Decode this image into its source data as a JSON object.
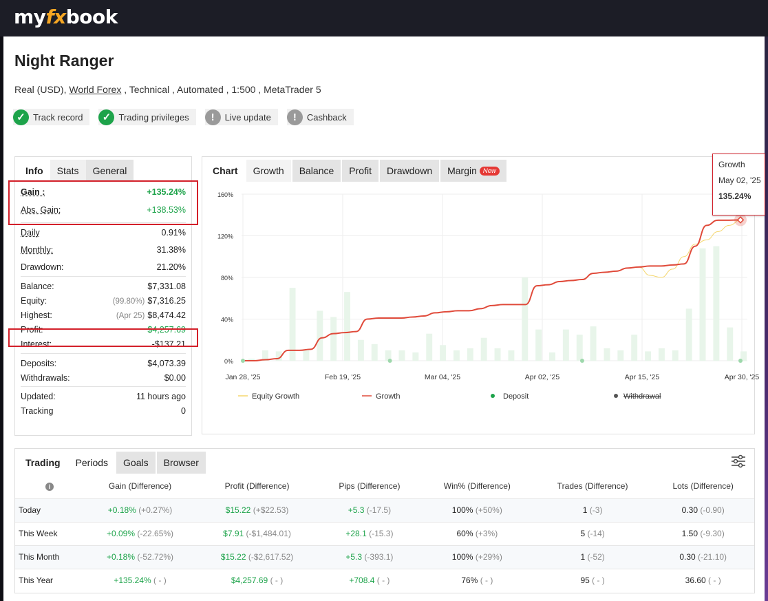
{
  "brand": {
    "pre": "my",
    "fx": "fx",
    "post": "book"
  },
  "account": {
    "name": "Night Ranger",
    "type_prefix": "Real (USD),",
    "broker": "World Forex",
    "details": " , Technical , Automated , 1:500 , MetaTrader 5"
  },
  "badges": [
    {
      "label": "Track record",
      "status": "ok",
      "icon": "check-circle-icon"
    },
    {
      "label": "Trading privileges",
      "status": "ok",
      "icon": "check-circle-icon"
    },
    {
      "label": "Live update",
      "status": "warn",
      "icon": "exclamation-circle-icon"
    },
    {
      "label": "Cashback",
      "status": "warn",
      "icon": "exclamation-circle-icon"
    }
  ],
  "info_tabs": [
    "Info",
    "Stats",
    "General"
  ],
  "info": {
    "gain": {
      "label": "Gain :",
      "value": "+135.24%"
    },
    "abs_gain": {
      "label": "Abs. Gain:",
      "value": "+138.53%"
    },
    "daily": {
      "label": "Daily",
      "value": "0.91%"
    },
    "monthly": {
      "label": "Monthly:",
      "value": "31.38%"
    },
    "drawdown": {
      "label": "Drawdown:",
      "value": "21.20%"
    },
    "balance": {
      "label": "Balance:",
      "value": "$7,331.08"
    },
    "equity": {
      "label": "Equity:",
      "note": "(99.80%)",
      "value": "$7,316.25"
    },
    "highest": {
      "label": "Highest:",
      "note": "(Apr 25)",
      "value": "$8,474.42"
    },
    "profit": {
      "label": "Profit:",
      "value": "$4,257.69"
    },
    "interest": {
      "label": "Interest:",
      "value": "-$137.21"
    },
    "deposits": {
      "label": "Deposits:",
      "value": "$4,073.39"
    },
    "withdrawals": {
      "label": "Withdrawals:",
      "value": "$0.00"
    },
    "updated": {
      "label": "Updated:",
      "value": "11 hours ago"
    },
    "tracking": {
      "label": "Tracking",
      "value": "0"
    }
  },
  "chart_tabs": {
    "chart": "Chart",
    "growth": "Growth",
    "balance": "Balance",
    "profit": "Profit",
    "drawdown": "Drawdown",
    "margin": "Margin",
    "new": "New"
  },
  "tooltip": {
    "series": "Growth",
    "date": "May 02, '25",
    "value": "135.24%"
  },
  "chart_data": {
    "type": "line",
    "x_ticks": [
      "Jan 28, '25",
      "Feb 19, '25",
      "Mar 04, '25",
      "Apr 02, '25",
      "Apr 15, '25",
      "Apr 30, '25"
    ],
    "y_ticks": [
      "0%",
      "40%",
      "80%",
      "120%",
      "160%"
    ],
    "ylim": [
      0,
      160
    ],
    "legend": [
      "Equity Growth",
      "Growth",
      "Deposit",
      "Withdrawal"
    ],
    "legend_placement": "bottom",
    "colors": {
      "growth": "#e04a3a",
      "equity": "#f5d76e",
      "deposit": "#1da34a",
      "withdrawal": "#555555",
      "bars": "#e8f5ea"
    },
    "growth": [
      0,
      0,
      1,
      2,
      10,
      10,
      11,
      22,
      26,
      27,
      28,
      40,
      41,
      41,
      41,
      42,
      43,
      46,
      47,
      48,
      48,
      50,
      53,
      54,
      54,
      54,
      72,
      73,
      76,
      77,
      78,
      84,
      85,
      86,
      89,
      90,
      91,
      91,
      92,
      93,
      110,
      130,
      135,
      135,
      135.24
    ],
    "equity_growth": [
      0,
      0,
      1,
      2,
      10,
      10,
      11,
      22,
      26,
      27,
      28,
      40,
      41,
      41,
      41,
      42,
      43,
      46,
      47,
      48,
      48,
      50,
      53,
      54,
      54,
      54,
      72,
      73,
      76,
      77,
      78,
      84,
      85,
      86,
      89,
      90,
      82,
      80,
      88,
      100,
      112,
      116,
      124,
      130,
      135
    ],
    "bars": [
      2,
      10,
      9,
      70,
      10,
      48,
      42,
      66,
      20,
      16,
      10,
      10,
      8,
      26,
      15,
      10,
      12,
      22,
      12,
      10,
      80,
      30,
      8,
      30,
      25,
      33,
      12,
      10,
      25,
      9,
      12,
      10,
      50,
      108,
      110,
      32,
      9
    ],
    "deposit_indices": [
      0,
      13,
      30,
      44
    ]
  },
  "period_tabs": [
    "Trading",
    "Periods",
    "Goals",
    "Browser"
  ],
  "periods": {
    "headers": [
      "Gain (Difference)",
      "Profit (Difference)",
      "Pips (Difference)",
      "Win% (Difference)",
      "Trades (Difference)",
      "Lots (Difference)"
    ],
    "rows": [
      {
        "label": "Today",
        "gain": "+0.18%",
        "gain_d": "(+0.27%)",
        "profit": "$15.22",
        "profit_d": "(+$22.53)",
        "pips": "+5.3",
        "pips_d": "(-17.5)",
        "win": "100%",
        "win_d": "(+50%)",
        "trades": "1",
        "trades_d": "(-3)",
        "lots": "0.30",
        "lots_d": "(-0.90)"
      },
      {
        "label": "This Week",
        "gain": "+0.09%",
        "gain_d": "(-22.65%)",
        "profit": "$7.91",
        "profit_d": "(-$1,484.01)",
        "pips": "+28.1",
        "pips_d": "(-15.3)",
        "win": "60%",
        "win_d": "(+3%)",
        "trades": "5",
        "trades_d": "(-14)",
        "lots": "1.50",
        "lots_d": "(-9.30)"
      },
      {
        "label": "This Month",
        "gain": "+0.18%",
        "gain_d": "(-52.72%)",
        "profit": "$15.22",
        "profit_d": "(-$2,617.52)",
        "pips": "+5.3",
        "pips_d": "(-393.1)",
        "win": "100%",
        "win_d": "(+29%)",
        "trades": "1",
        "trades_d": "(-52)",
        "lots": "0.30",
        "lots_d": "(-21.10)"
      },
      {
        "label": "This Year",
        "gain": "+135.24%",
        "gain_d": "( - )",
        "profit": "$4,257.69",
        "profit_d": "( - )",
        "pips": "+708.4",
        "pips_d": "( - )",
        "win": "76%",
        "win_d": "( - )",
        "trades": "95",
        "trades_d": "( - )",
        "lots": "36.60",
        "lots_d": "( - )"
      }
    ]
  }
}
